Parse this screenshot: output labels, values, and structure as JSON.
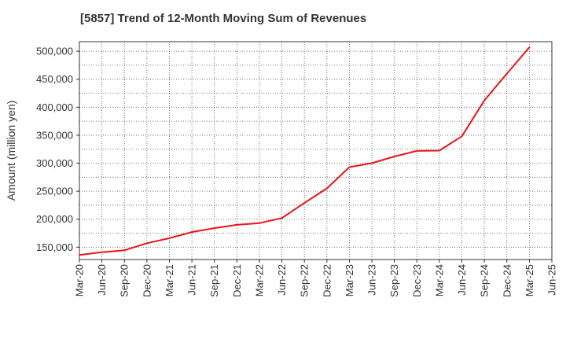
{
  "chart_data": {
    "type": "line",
    "title": "[5857]  Trend of 12-Month Moving Sum of Revenues",
    "xlabel": "",
    "ylabel": "Amount (million yen)",
    "x_tick_labels": [
      "Mar-20",
      "Jun-20",
      "Sep-20",
      "Dec-20",
      "Mar-21",
      "Jun-21",
      "Sep-21",
      "Dec-21",
      "Mar-22",
      "Jun-22",
      "Sep-22",
      "Dec-22",
      "Mar-23",
      "Jun-23",
      "Sep-23",
      "Dec-23",
      "Mar-24",
      "Jun-24",
      "Sep-24",
      "Dec-24",
      "Mar-25",
      "Jun-25"
    ],
    "y_tick_values": [
      150000,
      200000,
      250000,
      300000,
      350000,
      400000,
      450000,
      500000
    ],
    "y_tick_labels": [
      "150,000",
      "200,000",
      "250,000",
      "300,000",
      "350,000",
      "400,000",
      "450,000",
      "500,000"
    ],
    "ylim": [
      128000,
      517000
    ],
    "grid": true,
    "series": [
      {
        "color": "#e8141b",
        "x": [
          "Mar-20",
          "Jun-20",
          "Sep-20",
          "Dec-20",
          "Mar-21",
          "Jun-21",
          "Sep-21",
          "Dec-21",
          "Mar-22",
          "Jun-22",
          "Sep-22",
          "Dec-22",
          "Mar-23",
          "Jun-23",
          "Sep-23",
          "Dec-23",
          "Mar-24",
          "Jun-24",
          "Sep-24",
          "Dec-24",
          "Mar-25"
        ],
        "values": [
          136000,
          141000,
          144500,
          157000,
          166000,
          177000,
          184000,
          190000,
          193000,
          202000,
          229000,
          255000,
          293000,
          300000,
          312000,
          322000,
          322500,
          348000,
          412000,
          460000,
          507000
        ]
      }
    ]
  }
}
